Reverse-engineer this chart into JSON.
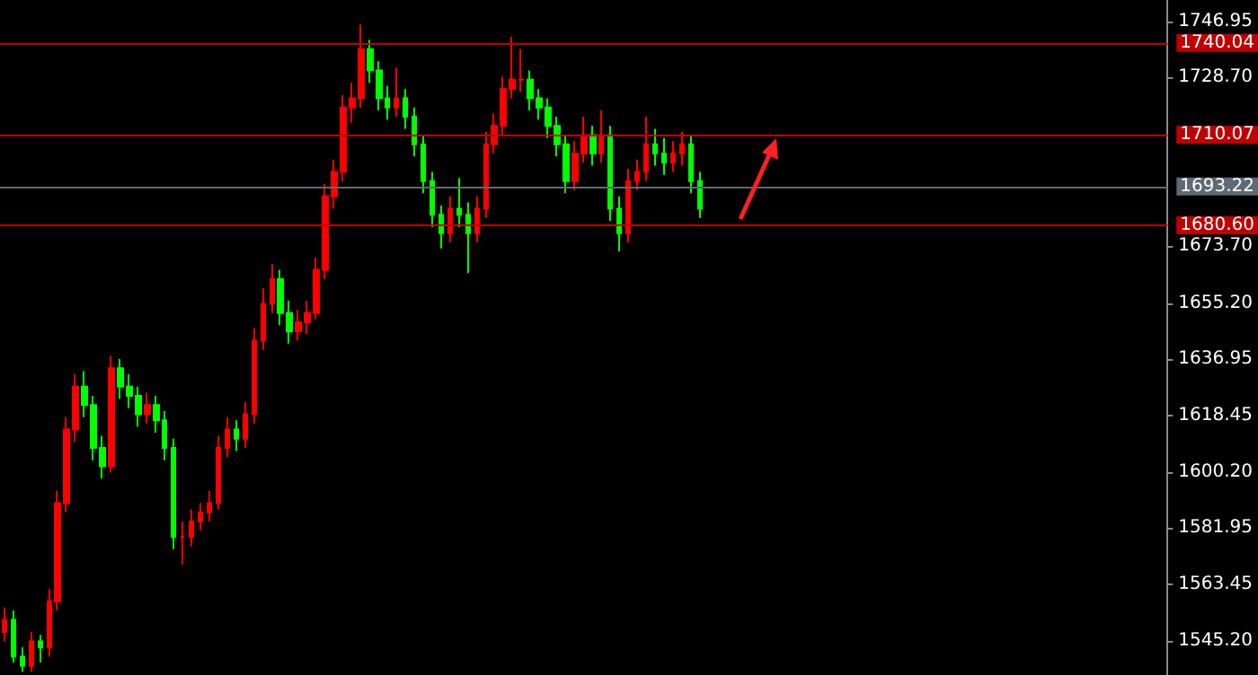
{
  "chart_data": {
    "type": "candlestick",
    "tick_labels": "y",
    "grid": false,
    "ylim": [
      1534,
      1754
    ],
    "yticks": [
      {
        "value": 1545.2,
        "label": "1545.20"
      },
      {
        "value": 1563.45,
        "label": "1563.45"
      },
      {
        "value": 1581.95,
        "label": "1581.95"
      },
      {
        "value": 1600.2,
        "label": "1600.20"
      },
      {
        "value": 1618.45,
        "label": "1618.45"
      },
      {
        "value": 1636.95,
        "label": "1636.95"
      },
      {
        "value": 1655.2,
        "label": "1655.20"
      },
      {
        "value": 1673.7,
        "label": "1673.70"
      },
      {
        "value": 1728.7,
        "label": "1728.70"
      },
      {
        "value": 1746.95,
        "label": "1746.95"
      }
    ],
    "ref_lines": [
      {
        "axis": "y",
        "value": 1740.04,
        "label": "1740.04",
        "color": "#c00000"
      },
      {
        "axis": "y",
        "value": 1710.07,
        "label": "1710.07",
        "color": "#c00000"
      },
      {
        "axis": "y",
        "value": 1693.22,
        "label": "1693.22",
        "color": "#5f6a75"
      },
      {
        "axis": "y",
        "value": 1680.6,
        "label": "1680.60",
        "color": "#c00000"
      }
    ],
    "categories": [
      null,
      null,
      null,
      null,
      null,
      null,
      null,
      null,
      null,
      null,
      null,
      null,
      null,
      null,
      null,
      null,
      null,
      null,
      null,
      null,
      null,
      null,
      null,
      null,
      null,
      null,
      null,
      null,
      null,
      null,
      null,
      null,
      null,
      null,
      null,
      null,
      null,
      null,
      null,
      null,
      null,
      null,
      null,
      null,
      null,
      null,
      null,
      null,
      null,
      null,
      null,
      null,
      null,
      null,
      null,
      null,
      null,
      null,
      null,
      null,
      null,
      null,
      null,
      null,
      null,
      null,
      null,
      null,
      null,
      null,
      null,
      null,
      null,
      null,
      null,
      null,
      null,
      null,
      null,
      null,
      null,
      null,
      null,
      null,
      null,
      null,
      null,
      null,
      null,
      null,
      null,
      null,
      null,
      null,
      null,
      null,
      null,
      null,
      null,
      null,
      null,
      null,
      null,
      null,
      null,
      null,
      null,
      null,
      null,
      null,
      null,
      null,
      null,
      null,
      null,
      null,
      null,
      null,
      null,
      null,
      null,
      null,
      null,
      null,
      null,
      null,
      null,
      null,
      null,
      null,
      null
    ],
    "ohlc": [
      [
        1548,
        1556,
        1545,
        1552
      ],
      [
        1552,
        1555,
        1538,
        1540
      ],
      [
        1540,
        1543,
        1535,
        1537
      ],
      [
        1537,
        1548,
        1535,
        1545
      ],
      [
        1545,
        1547,
        1538,
        1543
      ],
      [
        1543,
        1562,
        1540,
        1558
      ],
      [
        1558,
        1594,
        1555,
        1590
      ],
      [
        1590,
        1618,
        1587,
        1614
      ],
      [
        1614,
        1632,
        1610,
        1628
      ],
      [
        1628,
        1633,
        1618,
        1622
      ],
      [
        1622,
        1625,
        1604,
        1608
      ],
      [
        1608,
        1612,
        1598,
        1602
      ],
      [
        1602,
        1638,
        1600,
        1634
      ],
      [
        1634,
        1637,
        1624,
        1628
      ],
      [
        1628,
        1632,
        1621,
        1625
      ],
      [
        1625,
        1628,
        1615,
        1619
      ],
      [
        1619,
        1626,
        1616,
        1622
      ],
      [
        1622,
        1625,
        1613,
        1617
      ],
      [
        1617,
        1620,
        1604,
        1608
      ],
      [
        1608,
        1611,
        1575,
        1579
      ],
      [
        1579,
        1584,
        1570,
        1579
      ],
      [
        1579,
        1588,
        1576,
        1584
      ],
      [
        1584,
        1590,
        1581,
        1587
      ],
      [
        1587,
        1594,
        1584,
        1590
      ],
      [
        1590,
        1612,
        1588,
        1608
      ],
      [
        1608,
        1618,
        1605,
        1614
      ],
      [
        1614,
        1617,
        1607,
        1611
      ],
      [
        1611,
        1623,
        1608,
        1619
      ],
      [
        1619,
        1647,
        1616,
        1643
      ],
      [
        1643,
        1660,
        1640,
        1655
      ],
      [
        1655,
        1668,
        1652,
        1663
      ],
      [
        1663,
        1666,
        1648,
        1652
      ],
      [
        1652,
        1656,
        1642,
        1646
      ],
      [
        1646,
        1653,
        1643,
        1649
      ],
      [
        1649,
        1656,
        1645,
        1652
      ],
      [
        1652,
        1670,
        1650,
        1666
      ],
      [
        1666,
        1694,
        1663,
        1690
      ],
      [
        1690,
        1702,
        1686,
        1698
      ],
      [
        1698,
        1723,
        1695,
        1719
      ],
      [
        1719,
        1727,
        1714,
        1722
      ],
      [
        1722,
        1746,
        1719,
        1738
      ],
      [
        1738,
        1741,
        1727,
        1731
      ],
      [
        1731,
        1734,
        1718,
        1722
      ],
      [
        1722,
        1726,
        1715,
        1719
      ],
      [
        1719,
        1732,
        1716,
        1722
      ],
      [
        1722,
        1725,
        1712,
        1716
      ],
      [
        1716,
        1719,
        1703,
        1707
      ],
      [
        1707,
        1710,
        1691,
        1695
      ],
      [
        1695,
        1698,
        1680,
        1684
      ],
      [
        1684,
        1687,
        1673,
        1678
      ],
      [
        1678,
        1690,
        1675,
        1686
      ],
      [
        1686,
        1696,
        1680,
        1684
      ],
      [
        1684,
        1688,
        1665,
        1678
      ],
      [
        1678,
        1690,
        1675,
        1686
      ],
      [
        1686,
        1711,
        1683,
        1707
      ],
      [
        1707,
        1717,
        1704,
        1713
      ],
      [
        1713,
        1729,
        1710,
        1725
      ],
      [
        1725,
        1742,
        1722,
        1728
      ],
      [
        1728,
        1738,
        1724,
        1728
      ],
      [
        1728,
        1731,
        1718,
        1722
      ],
      [
        1722,
        1725,
        1715,
        1719
      ],
      [
        1719,
        1722,
        1709,
        1713
      ],
      [
        1713,
        1716,
        1703,
        1707
      ],
      [
        1707,
        1710,
        1691,
        1695
      ],
      [
        1695,
        1708,
        1692,
        1704
      ],
      [
        1704,
        1716,
        1701,
        1710
      ],
      [
        1710,
        1713,
        1700,
        1704
      ],
      [
        1704,
        1718,
        1701,
        1710
      ],
      [
        1710,
        1713,
        1682,
        1686
      ],
      [
        1686,
        1690,
        1672,
        1678
      ],
      [
        1678,
        1699,
        1675,
        1695
      ],
      [
        1695,
        1702,
        1692,
        1698
      ],
      [
        1698,
        1716,
        1695,
        1707
      ],
      [
        1707,
        1712,
        1700,
        1704
      ],
      [
        1704,
        1709,
        1697,
        1701
      ],
      [
        1701,
        1708,
        1698,
        1704
      ],
      [
        1704,
        1711,
        1700,
        1707
      ],
      [
        1707,
        1710,
        1691,
        1695
      ],
      [
        1695,
        1698,
        1683,
        1686
      ],
      null,
      null,
      null,
      null,
      null,
      null,
      null,
      null,
      null,
      null,
      null,
      null,
      null,
      null,
      null,
      null,
      null,
      null,
      null,
      null,
      null,
      null,
      null,
      null,
      null,
      null,
      null,
      null,
      null,
      null,
      null,
      null,
      null,
      null,
      null,
      null,
      null,
      null,
      null,
      null,
      null,
      null,
      null,
      null,
      null,
      null,
      null,
      null,
      null,
      null,
      null,
      null
    ]
  }
}
